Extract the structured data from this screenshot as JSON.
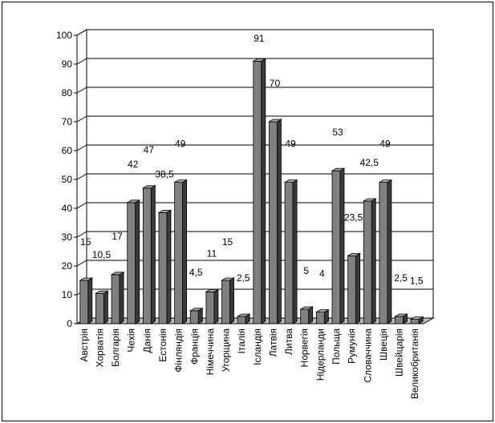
{
  "chart_data": {
    "type": "bar",
    "style": "3d-column",
    "categories": [
      "Австрія",
      "Хорватія",
      "Болгарія",
      "Чехія",
      "Данія",
      "Естонія",
      "Фінляндія",
      "Франція",
      "Німеччина",
      "Угорщина",
      "Італія",
      "Ісландія",
      "Латвія",
      "Литва",
      "Норвегія",
      "Нідерланди",
      "Польща",
      "Румунія",
      "Словаччина",
      "Швеція",
      "Швейцарія",
      "Великобританія"
    ],
    "values": [
      15,
      10.5,
      17,
      42,
      47,
      38.5,
      49,
      4.5,
      11,
      15,
      2.5,
      91,
      70,
      49,
      5,
      4,
      53,
      23.5,
      42.5,
      49,
      2.5,
      1.5
    ],
    "data_labels": [
      "15",
      "10,5",
      "17",
      "42",
      "47",
      "38,5",
      "49",
      "4,5",
      "11",
      "15",
      "2,5",
      "91",
      "70",
      "49",
      "5",
      "4",
      "53",
      "23,5",
      "42,5",
      "49",
      "2,5",
      "1,5"
    ],
    "yticks": [
      "0",
      "10",
      "20",
      "30",
      "40",
      "50",
      "60",
      "70",
      "80",
      "90",
      "100"
    ],
    "ylim": [
      0,
      100
    ],
    "grid": true,
    "legend": "none",
    "colors": {
      "bar_front": "#808080",
      "bar_side": "#3a3a3a",
      "bar_top": "#a8a8a8",
      "grid": "#000000",
      "wall": "#ffffff"
    }
  }
}
